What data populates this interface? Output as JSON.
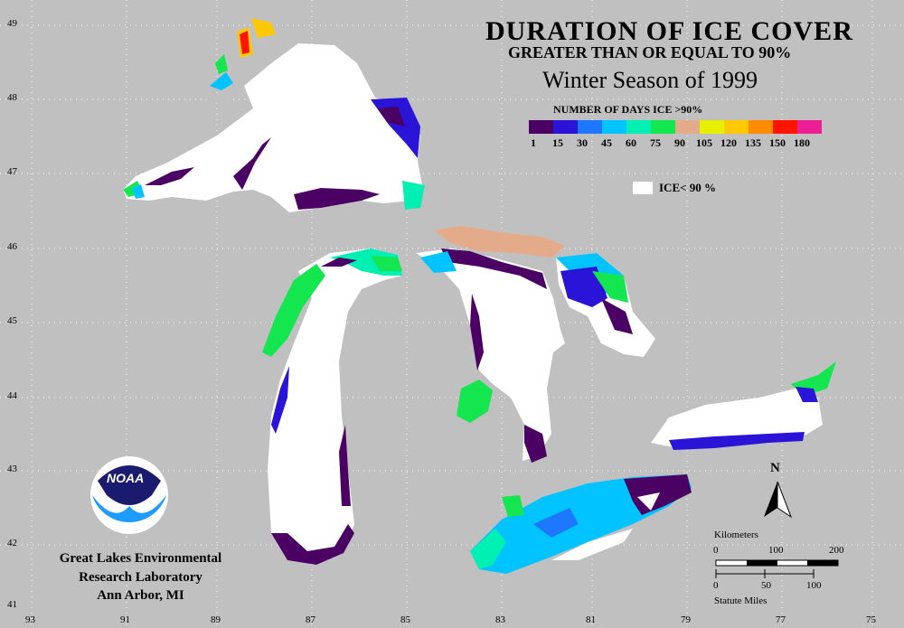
{
  "title": {
    "line1": "DURATION OF ICE COVER",
    "line2": "GREATER THAN OR EQUAL TO 90%",
    "line3": "Winter Season of 1999"
  },
  "legend": {
    "title": "NUMBER OF DAYS ICE >90%",
    "colors": [
      "#4b0063",
      "#2a14d8",
      "#1e78ff",
      "#00c3ff",
      "#00f0b4",
      "#14e650",
      "#e3ab8a",
      "#e6f000",
      "#ffc800",
      "#ff8c00",
      "#ff1400",
      "#eb1e96"
    ],
    "ticks": [
      "1",
      "15",
      "30",
      "45",
      "60",
      "75",
      "90",
      "105",
      "120",
      "135",
      "150",
      "180"
    ],
    "ice_lt_label": "ICE< 90 %"
  },
  "latitudes": [
    "49",
    "48",
    "47",
    "46",
    "45",
    "44",
    "43",
    "42",
    "41"
  ],
  "longitudes": [
    "93",
    "91",
    "89",
    "87",
    "85",
    "83",
    "81",
    "79",
    "77",
    "75"
  ],
  "credit": {
    "line1": "Great Lakes Environmental",
    "line2": "Research Laboratory",
    "line3": "Ann Arbor, MI"
  },
  "logo_text": "NOAA",
  "scale": {
    "km_label": "Kilometers",
    "km_ticks": [
      "0",
      "100",
      "200"
    ],
    "mi_ticks": [
      "0",
      "50",
      "100"
    ],
    "mi_label": "Statute Miles"
  },
  "north_label": "N"
}
